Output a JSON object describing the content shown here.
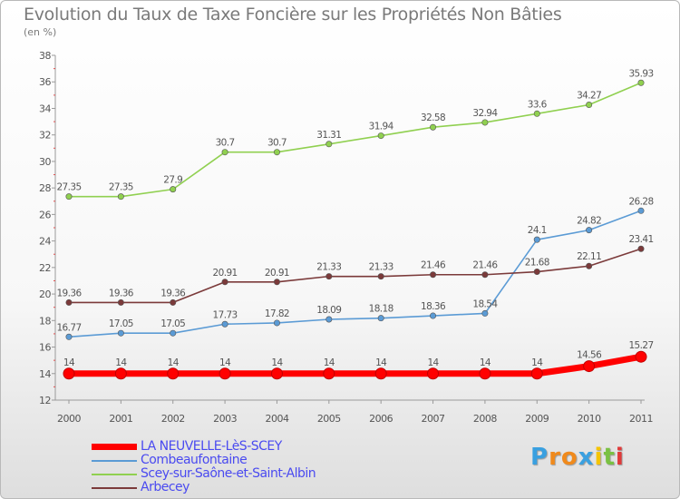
{
  "header": {
    "title": "Evolution du Taux de Taxe Foncière sur les Propriétés Non Bâties",
    "subtitle": "(en %)"
  },
  "logo": {
    "letters": [
      "P",
      "r",
      "o",
      "x",
      "i",
      "t",
      "i"
    ],
    "colors": [
      "#3aa0e0",
      "#f08a1c",
      "#f08a1c",
      "#3aa0e0",
      "#f5c400",
      "#7ac142",
      "#e03a3a"
    ]
  },
  "chart_data": {
    "type": "line",
    "x": [
      "2000",
      "2001",
      "2002",
      "2003",
      "2004",
      "2005",
      "2006",
      "2007",
      "2008",
      "2009",
      "2010",
      "2011"
    ],
    "ylim": [
      12,
      38
    ],
    "yticks": [
      12,
      14,
      16,
      18,
      20,
      22,
      24,
      26,
      28,
      30,
      32,
      34,
      36,
      38
    ],
    "grid": false,
    "legend_position": "bottom-left",
    "series": [
      {
        "name": "LA NEUVELLE-LèS-SCEY",
        "color": "#ff0000",
        "emphasis": true,
        "values": [
          14,
          14,
          14,
          14,
          14,
          14,
          14,
          14,
          14,
          14,
          14.56,
          15.27
        ],
        "labels": [
          "14",
          "14",
          "14",
          "14",
          "14",
          "14",
          "14",
          "14",
          "14",
          "14",
          "14.56",
          "15.27"
        ]
      },
      {
        "name": "Combeaufontaine",
        "color": "#5b9bd5",
        "emphasis": false,
        "values": [
          16.77,
          17.05,
          17.05,
          17.73,
          17.82,
          18.09,
          18.18,
          18.36,
          18.54,
          24.1,
          24.82,
          26.28
        ],
        "labels": [
          "16.77",
          "17.05",
          "17.05",
          "17.73",
          "17.82",
          "18.09",
          "18.18",
          "18.36",
          "18.54",
          "24.1",
          "24.82",
          "26.28"
        ]
      },
      {
        "name": "Scey-sur-Saône-et-Saint-Albin",
        "color": "#90d050",
        "emphasis": false,
        "values": [
          27.35,
          27.35,
          27.9,
          30.7,
          30.7,
          31.31,
          31.94,
          32.58,
          32.94,
          33.6,
          34.27,
          35.93
        ],
        "labels": [
          "27.35",
          "27.35",
          "27.9",
          "30.7",
          "30.7",
          "31.31",
          "31.94",
          "32.58",
          "32.94",
          "33.6",
          "34.27",
          "35.93"
        ]
      },
      {
        "name": "Arbecey",
        "color": "#7b3a3a",
        "emphasis": false,
        "values": [
          19.36,
          19.36,
          19.36,
          20.91,
          20.91,
          21.33,
          21.33,
          21.46,
          21.46,
          21.68,
          22.11,
          23.41
        ],
        "labels": [
          "19.36",
          "19.36",
          "19.36",
          "20.91",
          "20.91",
          "21.33",
          "21.33",
          "21.46",
          "21.46",
          "21.68",
          "22.11",
          "23.41"
        ]
      }
    ]
  }
}
